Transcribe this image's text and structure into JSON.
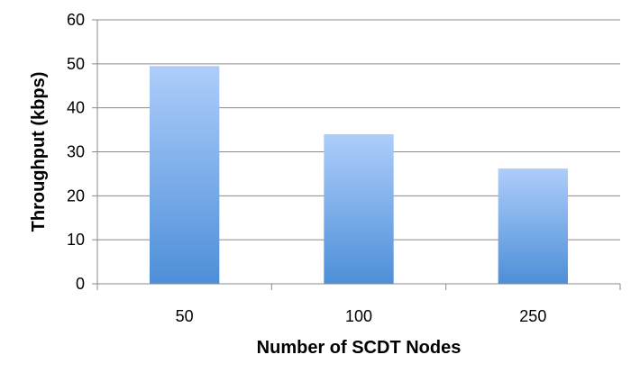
{
  "chart_data": {
    "type": "bar",
    "categories": [
      "50",
      "100",
      "250"
    ],
    "values": [
      49.5,
      34,
      26.2
    ],
    "xlabel": "Number of SCDT Nodes",
    "ylabel": "Throughput (kbps)",
    "ylim": [
      0,
      60
    ],
    "yticks": [
      "0",
      "10",
      "20",
      "30",
      "40",
      "50",
      "60"
    ],
    "grid": true,
    "legend": "none",
    "colors": {
      "bar_top": "#aecdfb",
      "bar_bottom": "#4d8fd8",
      "grid": "#8a8a8a",
      "axis": "#8a8a8a"
    }
  }
}
